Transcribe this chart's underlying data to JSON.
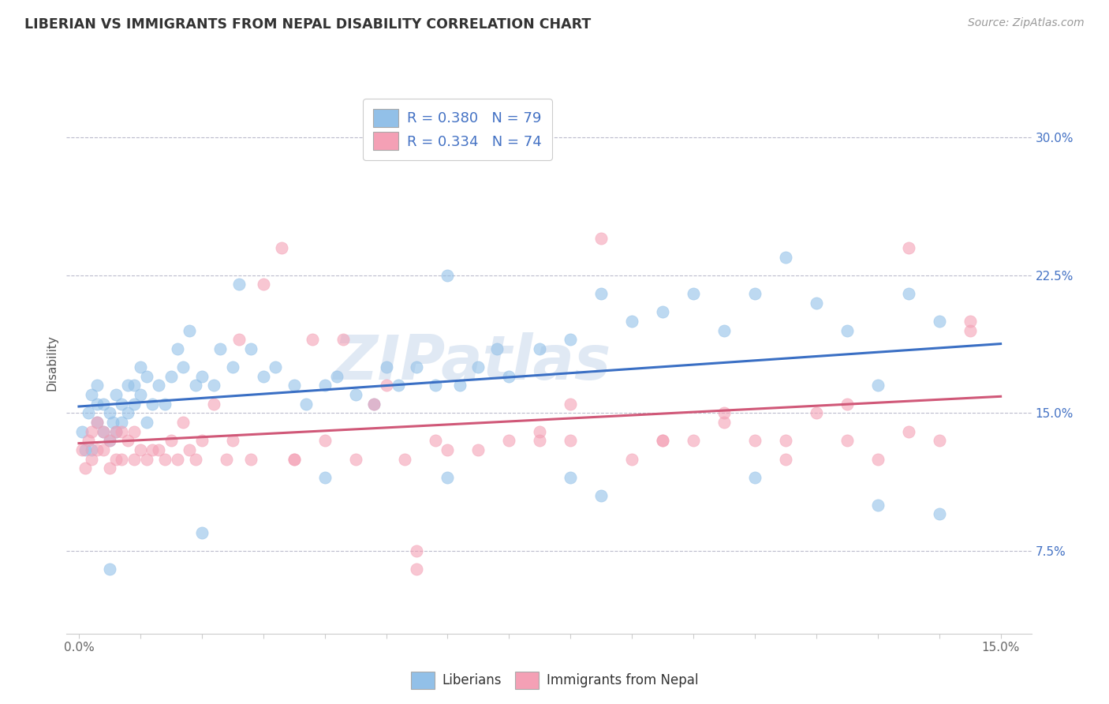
{
  "title": "LIBERIAN VS IMMIGRANTS FROM NEPAL DISABILITY CORRELATION CHART",
  "source": "Source: ZipAtlas.com",
  "ylabel": "Disability",
  "legend_entry1": "R = 0.380   N = 79",
  "legend_entry2": "R = 0.334   N = 74",
  "color_blue": "#92C0E8",
  "color_pink": "#F4A0B5",
  "line_blue": "#3A6FC4",
  "line_pink": "#D05878",
  "watermark": "ZIPatlas",
  "ytick_values": [
    0.075,
    0.15,
    0.225,
    0.3
  ],
  "ytick_labels": [
    "7.5%",
    "15.0%",
    "22.5%",
    "30.0%"
  ],
  "xlim_min": -0.002,
  "xlim_max": 0.155,
  "ylim_min": 0.03,
  "ylim_max": 0.325,
  "lib_intercept": 0.138,
  "lib_slope": 0.52,
  "nep_intercept": 0.128,
  "nep_slope": 0.48,
  "lib_points_x": [
    0.0005,
    0.001,
    0.0015,
    0.002,
    0.002,
    0.003,
    0.003,
    0.003,
    0.004,
    0.004,
    0.005,
    0.005,
    0.0055,
    0.006,
    0.006,
    0.007,
    0.007,
    0.008,
    0.008,
    0.009,
    0.009,
    0.01,
    0.01,
    0.011,
    0.011,
    0.012,
    0.013,
    0.014,
    0.015,
    0.016,
    0.017,
    0.018,
    0.019,
    0.02,
    0.022,
    0.023,
    0.025,
    0.026,
    0.028,
    0.03,
    0.032,
    0.035,
    0.037,
    0.04,
    0.042,
    0.045,
    0.048,
    0.05,
    0.052,
    0.055,
    0.058,
    0.06,
    0.062,
    0.065,
    0.068,
    0.07,
    0.075,
    0.08,
    0.085,
    0.09,
    0.095,
    0.1,
    0.105,
    0.11,
    0.115,
    0.12,
    0.125,
    0.13,
    0.135,
    0.14,
    0.02,
    0.04,
    0.06,
    0.08,
    0.085,
    0.11,
    0.13,
    0.14,
    0.005
  ],
  "lib_points_y": [
    0.14,
    0.13,
    0.15,
    0.16,
    0.13,
    0.145,
    0.155,
    0.165,
    0.14,
    0.155,
    0.135,
    0.15,
    0.145,
    0.14,
    0.16,
    0.155,
    0.145,
    0.15,
    0.165,
    0.155,
    0.165,
    0.16,
    0.175,
    0.145,
    0.17,
    0.155,
    0.165,
    0.155,
    0.17,
    0.185,
    0.175,
    0.195,
    0.165,
    0.17,
    0.165,
    0.185,
    0.175,
    0.22,
    0.185,
    0.17,
    0.175,
    0.165,
    0.155,
    0.165,
    0.17,
    0.16,
    0.155,
    0.175,
    0.165,
    0.175,
    0.165,
    0.225,
    0.165,
    0.175,
    0.185,
    0.17,
    0.185,
    0.19,
    0.215,
    0.2,
    0.205,
    0.215,
    0.195,
    0.215,
    0.235,
    0.21,
    0.195,
    0.165,
    0.215,
    0.2,
    0.085,
    0.115,
    0.115,
    0.115,
    0.105,
    0.115,
    0.1,
    0.095,
    0.065
  ],
  "nep_points_x": [
    0.0005,
    0.001,
    0.0015,
    0.002,
    0.002,
    0.003,
    0.003,
    0.004,
    0.004,
    0.005,
    0.005,
    0.006,
    0.006,
    0.007,
    0.007,
    0.008,
    0.009,
    0.009,
    0.01,
    0.011,
    0.012,
    0.013,
    0.014,
    0.015,
    0.016,
    0.017,
    0.018,
    0.019,
    0.02,
    0.022,
    0.024,
    0.026,
    0.028,
    0.03,
    0.033,
    0.035,
    0.038,
    0.04,
    0.043,
    0.045,
    0.048,
    0.05,
    0.053,
    0.055,
    0.058,
    0.06,
    0.065,
    0.07,
    0.075,
    0.08,
    0.085,
    0.09,
    0.095,
    0.1,
    0.105,
    0.11,
    0.115,
    0.12,
    0.125,
    0.13,
    0.135,
    0.14,
    0.025,
    0.035,
    0.055,
    0.075,
    0.095,
    0.115,
    0.135,
    0.145,
    0.08,
    0.105,
    0.125,
    0.145
  ],
  "nep_points_y": [
    0.13,
    0.12,
    0.135,
    0.125,
    0.14,
    0.13,
    0.145,
    0.13,
    0.14,
    0.12,
    0.135,
    0.125,
    0.14,
    0.125,
    0.14,
    0.135,
    0.125,
    0.14,
    0.13,
    0.125,
    0.13,
    0.13,
    0.125,
    0.135,
    0.125,
    0.145,
    0.13,
    0.125,
    0.135,
    0.155,
    0.125,
    0.19,
    0.125,
    0.22,
    0.24,
    0.125,
    0.19,
    0.135,
    0.19,
    0.125,
    0.155,
    0.165,
    0.125,
    0.065,
    0.135,
    0.13,
    0.13,
    0.135,
    0.14,
    0.135,
    0.245,
    0.125,
    0.135,
    0.135,
    0.145,
    0.135,
    0.125,
    0.15,
    0.135,
    0.125,
    0.14,
    0.135,
    0.135,
    0.125,
    0.075,
    0.135,
    0.135,
    0.135,
    0.24,
    0.195,
    0.155,
    0.15,
    0.155,
    0.2
  ]
}
